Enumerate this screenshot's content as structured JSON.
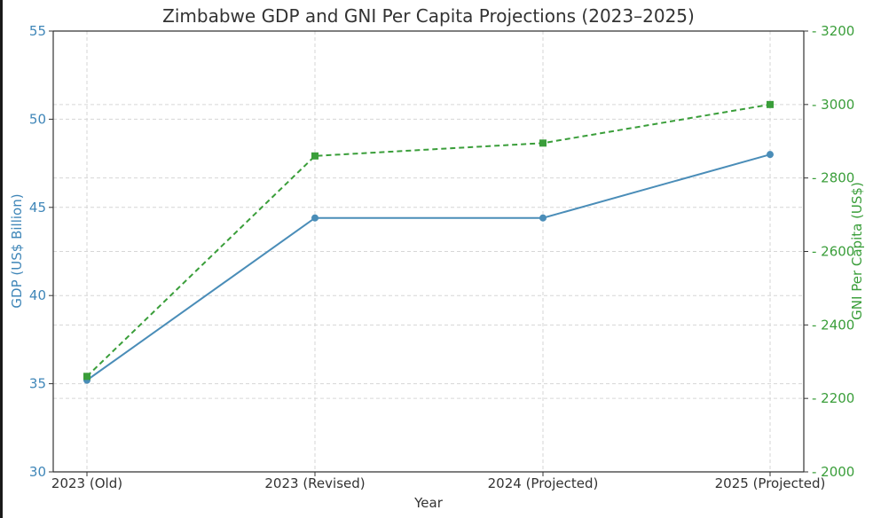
{
  "chart_data": {
    "type": "line",
    "title": "Zimbabwe GDP and GNI Per Capita Projections (2023–2025)",
    "xlabel": "Year",
    "ylabel_left": "GDP (US$ Billion)",
    "ylabel_right": "GNI Per Capita (US$)",
    "categories": [
      "2023 (Old)",
      "2023 (Revised)",
      "2024 (Projected)",
      "2025 (Projected)"
    ],
    "y_left": {
      "range": [
        30,
        55
      ],
      "ticks": [
        "30",
        "35",
        "40",
        "45",
        "50",
        "55"
      ]
    },
    "y_right": {
      "range": [
        2000,
        3200
      ],
      "ticks": [
        "2000",
        "2200",
        "2400",
        "2600",
        "2800",
        "3000",
        "3200"
      ]
    },
    "grid": true,
    "series": [
      {
        "axis": "left",
        "values": [
          35.2,
          44.4,
          44.4,
          48.0
        ],
        "color": "#4a8db8",
        "style": "solid",
        "marker": "circle"
      },
      {
        "axis": "right",
        "values": [
          2260,
          2860,
          2895,
          3000
        ],
        "color": "#3a9e3a",
        "style": "dashed",
        "marker": "square"
      }
    ],
    "colors": {
      "left_axis": "#3f86b8",
      "right_axis": "#3a9e3a",
      "text": "#333333"
    }
  }
}
